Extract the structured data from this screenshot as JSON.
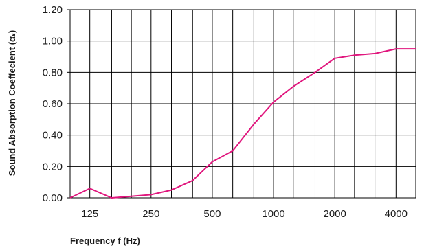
{
  "chart_data": {
    "type": "line",
    "xlabel": "Frequency f (Hz)",
    "ylabel": "Sound Absorption Coeffecient (αₛ)",
    "x_axis_scale": "log",
    "x_tick_labels": [
      {
        "value": 125,
        "label": "125"
      },
      {
        "value": 250,
        "label": "250"
      },
      {
        "value": 500,
        "label": "500"
      },
      {
        "value": 1000,
        "label": "1000"
      },
      {
        "value": 2000,
        "label": "2000"
      },
      {
        "value": 4000,
        "label": "4000"
      }
    ],
    "x_gridlines": [
      125,
      160,
      200,
      250,
      315,
      400,
      500,
      630,
      800,
      1000,
      1250,
      1600,
      2000,
      2500,
      3150,
      4000
    ],
    "xlim": [
      100,
      5000
    ],
    "ylim": [
      0,
      1.2
    ],
    "y_ticks": [
      {
        "value": 0.0,
        "label": "0.00"
      },
      {
        "value": 0.2,
        "label": "0.20"
      },
      {
        "value": 0.4,
        "label": "0.40"
      },
      {
        "value": 0.6,
        "label": "0.60"
      },
      {
        "value": 0.8,
        "label": "0.80"
      },
      {
        "value": 1.0,
        "label": "1.00"
      },
      {
        "value": 1.2,
        "label": "1.20"
      }
    ],
    "grid": true,
    "line_color": "#e0167d",
    "series": [
      {
        "x": [
          100,
          125,
          160,
          200,
          250,
          315,
          400,
          500,
          630,
          800,
          1000,
          1250,
          1600,
          2000,
          2500,
          3150,
          4000,
          5000
        ],
        "y": [
          0.0,
          0.06,
          0.0,
          0.01,
          0.02,
          0.05,
          0.11,
          0.23,
          0.3,
          0.47,
          0.61,
          0.71,
          0.8,
          0.89,
          0.91,
          0.92,
          0.95,
          0.95
        ]
      }
    ]
  }
}
